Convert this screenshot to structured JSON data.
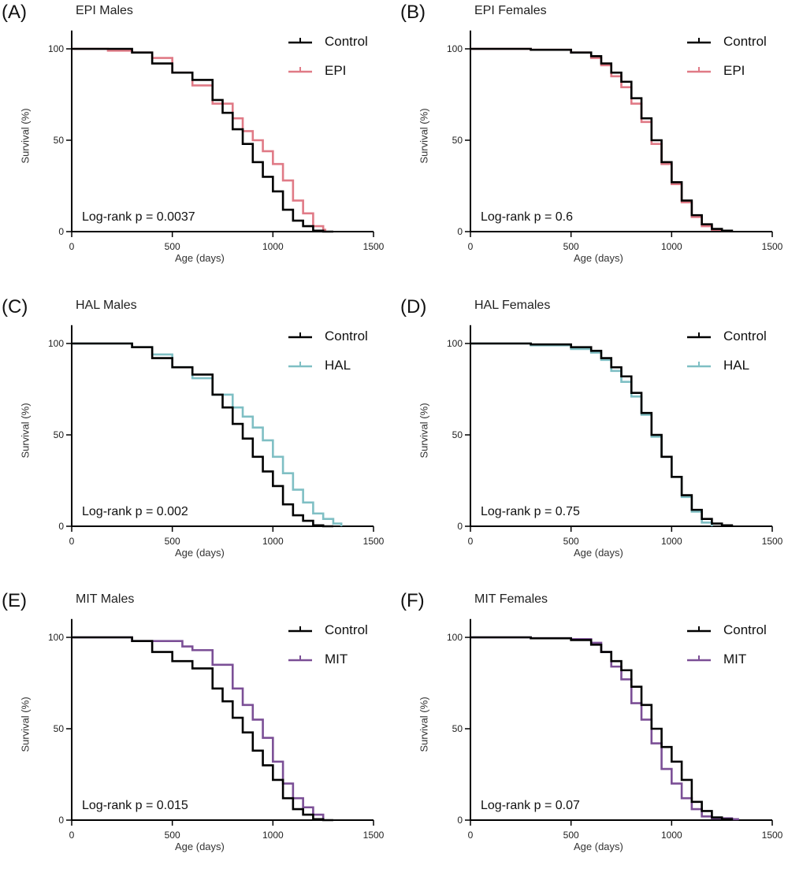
{
  "chart_data": [
    {
      "type": "line",
      "panel_label": "(A)",
      "title": "EPI Males",
      "xlabel": "Age (days)",
      "ylabel": "Survival (%)",
      "xlim": [
        0,
        1500
      ],
      "ylim": [
        0,
        110
      ],
      "xticks": [
        "0",
        "500",
        "1000",
        "1500"
      ],
      "yticks": [
        "0",
        "50",
        "100"
      ],
      "annotation": "Log-rank p = 0.0037",
      "legend_placement": "top-right",
      "series": [
        {
          "name": "Control",
          "color": "#000000",
          "x": [
            0,
            200,
            300,
            400,
            500,
            600,
            700,
            750,
            800,
            850,
            900,
            950,
            1000,
            1050,
            1100,
            1150,
            1200,
            1250,
            1300
          ],
          "y": [
            100,
            100,
            98,
            92,
            87,
            83,
            72,
            65,
            56,
            48,
            38,
            30,
            22,
            12,
            6,
            3,
            0.5,
            0,
            0
          ]
        },
        {
          "name": "EPI",
          "color": "#e07a86",
          "x": [
            0,
            180,
            300,
            400,
            500,
            600,
            700,
            800,
            850,
            900,
            950,
            1000,
            1050,
            1100,
            1150,
            1200,
            1250,
            1260
          ],
          "y": [
            100,
            99,
            98,
            95,
            87,
            80,
            70,
            62,
            55,
            50,
            44,
            37,
            28,
            17,
            10,
            3,
            1,
            0
          ]
        }
      ]
    },
    {
      "type": "line",
      "panel_label": "(B)",
      "title": "EPI Females",
      "xlabel": "Age (days)",
      "ylabel": "Survival (%)",
      "xlim": [
        0,
        1500
      ],
      "ylim": [
        0,
        110
      ],
      "xticks": [
        "0",
        "500",
        "1000",
        "1500"
      ],
      "yticks": [
        "0",
        "50",
        "100"
      ],
      "annotation": "Log-rank p = 0.6",
      "legend_placement": "top-right",
      "series": [
        {
          "name": "Control",
          "color": "#000000",
          "x": [
            0,
            300,
            500,
            600,
            650,
            700,
            750,
            800,
            850,
            900,
            950,
            1000,
            1050,
            1100,
            1150,
            1200,
            1250,
            1300
          ],
          "y": [
            100,
            99.5,
            98,
            96,
            92,
            87,
            82,
            73,
            62,
            50,
            38,
            27,
            17,
            9,
            4,
            1.5,
            0.5,
            0
          ]
        },
        {
          "name": "EPI",
          "color": "#e07a86",
          "x": [
            0,
            300,
            500,
            600,
            650,
            700,
            750,
            800,
            850,
            900,
            950,
            1000,
            1050,
            1100,
            1150,
            1200,
            1250,
            1290
          ],
          "y": [
            100,
            99.5,
            98,
            95,
            91,
            85,
            79,
            70,
            60,
            48,
            37,
            26,
            16,
            8,
            3,
            1,
            0.5,
            0
          ]
        }
      ]
    },
    {
      "type": "line",
      "panel_label": "(C)",
      "title": "HAL Males",
      "xlabel": "Age (days)",
      "ylabel": "Survival (%)",
      "xlim": [
        0,
        1500
      ],
      "ylim": [
        0,
        110
      ],
      "xticks": [
        "0",
        "500",
        "1000",
        "1500"
      ],
      "yticks": [
        "0",
        "50",
        "100"
      ],
      "annotation": "Log-rank p = 0.002",
      "legend_placement": "top-right",
      "series": [
        {
          "name": "Control",
          "color": "#000000",
          "x": [
            0,
            200,
            300,
            400,
            500,
            600,
            700,
            750,
            800,
            850,
            900,
            950,
            1000,
            1050,
            1100,
            1150,
            1200,
            1250,
            1300
          ],
          "y": [
            100,
            100,
            98,
            92,
            87,
            83,
            72,
            65,
            56,
            48,
            38,
            30,
            22,
            12,
            6,
            3,
            0.5,
            0,
            0
          ]
        },
        {
          "name": "HAL",
          "color": "#7fbfc4",
          "x": [
            0,
            200,
            300,
            400,
            500,
            600,
            700,
            800,
            850,
            900,
            950,
            1000,
            1050,
            1100,
            1150,
            1200,
            1250,
            1300,
            1340
          ],
          "y": [
            100,
            100,
            98,
            94,
            87,
            81,
            72,
            65,
            60,
            54,
            47,
            38,
            29,
            20,
            13,
            7,
            4,
            1.5,
            0
          ]
        }
      ]
    },
    {
      "type": "line",
      "panel_label": "(D)",
      "title": "HAL Females",
      "xlabel": "Age (days)",
      "ylabel": "Survival (%)",
      "xlim": [
        0,
        1500
      ],
      "ylim": [
        0,
        110
      ],
      "xticks": [
        "0",
        "500",
        "1000",
        "1500"
      ],
      "yticks": [
        "0",
        "50",
        "100"
      ],
      "annotation": "Log-rank p = 0.75",
      "legend_placement": "top-right",
      "series": [
        {
          "name": "Control",
          "color": "#000000",
          "x": [
            0,
            300,
            500,
            600,
            650,
            700,
            750,
            800,
            850,
            900,
            950,
            1000,
            1050,
            1100,
            1150,
            1200,
            1250,
            1300
          ],
          "y": [
            100,
            99.5,
            98,
            96,
            92,
            87,
            82,
            73,
            62,
            50,
            38,
            27,
            17,
            9,
            4,
            1.5,
            0.5,
            0
          ]
        },
        {
          "name": "HAL",
          "color": "#7fbfc4",
          "x": [
            0,
            300,
            500,
            600,
            650,
            700,
            750,
            800,
            850,
            900,
            950,
            1000,
            1050,
            1100,
            1150,
            1200
          ],
          "y": [
            100,
            99,
            97,
            95,
            91,
            85,
            79,
            71,
            61,
            49,
            38,
            27,
            16,
            8,
            2,
            0
          ]
        }
      ]
    },
    {
      "type": "line",
      "panel_label": "(E)",
      "title": "MIT Males",
      "xlabel": "Age (days)",
      "ylabel": "Survival (%)",
      "xlim": [
        0,
        1500
      ],
      "ylim": [
        0,
        110
      ],
      "xticks": [
        "0",
        "500",
        "1000",
        "1500"
      ],
      "yticks": [
        "0",
        "50",
        "100"
      ],
      "annotation": "Log-rank p = 0.015",
      "legend_placement": "top-right",
      "series": [
        {
          "name": "Control",
          "color": "#000000",
          "x": [
            0,
            200,
            300,
            400,
            500,
            600,
            700,
            750,
            800,
            850,
            900,
            950,
            1000,
            1050,
            1100,
            1150,
            1200,
            1250,
            1300
          ],
          "y": [
            100,
            100,
            98,
            92,
            87,
            83,
            72,
            65,
            56,
            48,
            38,
            30,
            22,
            12,
            6,
            3,
            0.5,
            0,
            0
          ]
        },
        {
          "name": "MIT",
          "color": "#7b4f96",
          "x": [
            0,
            200,
            300,
            470,
            550,
            600,
            700,
            800,
            850,
            900,
            950,
            1000,
            1050,
            1100,
            1150,
            1200,
            1250
          ],
          "y": [
            100,
            100,
            98,
            98,
            95,
            93,
            85,
            72,
            63,
            55,
            45,
            32,
            20,
            12,
            7,
            3,
            0
          ]
        }
      ]
    },
    {
      "type": "line",
      "panel_label": "(F)",
      "title": "MIT Females",
      "xlabel": "Age (days)",
      "ylabel": "Survival (%)",
      "xlim": [
        0,
        1500
      ],
      "ylim": [
        0,
        110
      ],
      "xticks": [
        "0",
        "500",
        "1000",
        "1500"
      ],
      "yticks": [
        "0",
        "50",
        "100"
      ],
      "annotation": "Log-rank p = 0.07",
      "legend_placement": "top-right",
      "series": [
        {
          "name": "Control",
          "color": "#000000",
          "x": [
            0,
            300,
            500,
            600,
            650,
            700,
            750,
            800,
            850,
            900,
            950,
            1000,
            1050,
            1100,
            1150,
            1200,
            1250,
            1300
          ],
          "y": [
            100,
            99.5,
            98.5,
            96,
            92,
            87,
            82,
            73,
            63,
            50,
            40,
            32,
            22,
            10,
            5,
            1.5,
            0.5,
            0
          ]
        },
        {
          "name": "MIT",
          "color": "#7b4f96",
          "x": [
            0,
            300,
            500,
            600,
            650,
            700,
            750,
            800,
            850,
            900,
            950,
            1000,
            1050,
            1100,
            1150,
            1200,
            1300,
            1330
          ],
          "y": [
            100,
            99.5,
            99,
            97,
            92,
            84,
            77,
            64,
            55,
            42,
            28,
            20,
            12,
            6,
            2,
            1,
            0.5,
            0
          ]
        }
      ]
    }
  ]
}
